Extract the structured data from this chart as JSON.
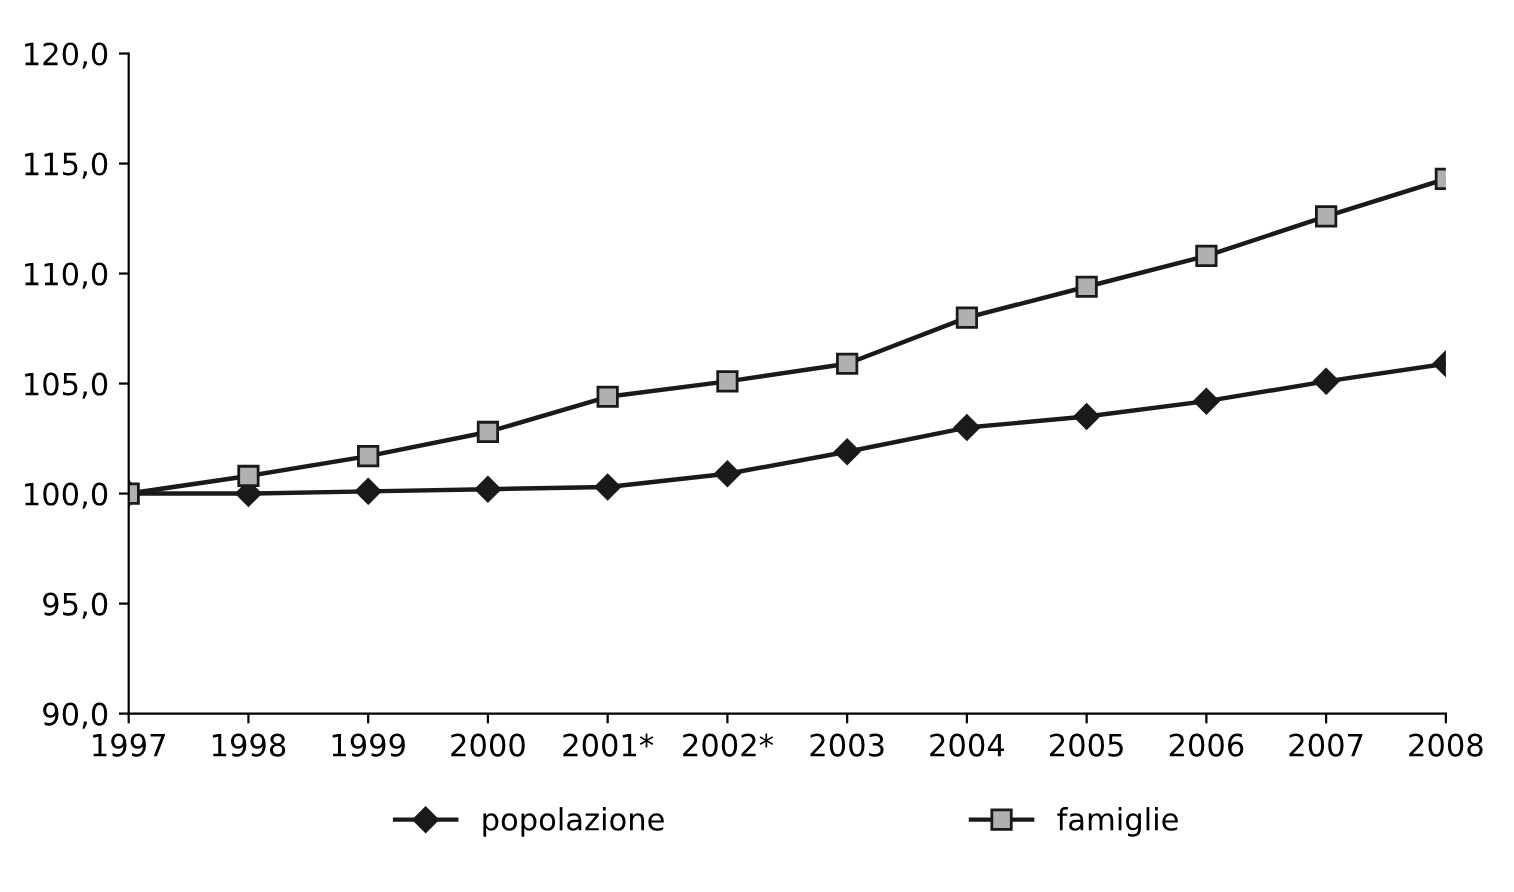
{
  "chart_data": {
    "type": "line",
    "categories": [
      "1997",
      "1998",
      "1999",
      "2000",
      "2001*",
      "2002*",
      "2003",
      "2004",
      "2005",
      "2006",
      "2007",
      "2008"
    ],
    "series": [
      {
        "name": "popolazione",
        "color": "#1a1a1a",
        "marker": "diamond",
        "values": [
          100.0,
          100.0,
          100.1,
          100.2,
          100.3,
          100.9,
          101.9,
          103.0,
          103.5,
          104.2,
          105.1,
          105.9
        ]
      },
      {
        "name": "famiglie",
        "color": "#1a1a1a",
        "marker": "square",
        "values": [
          100.0,
          100.8,
          101.7,
          102.8,
          104.4,
          105.1,
          105.9,
          108.0,
          109.4,
          110.8,
          112.6,
          114.3
        ]
      }
    ],
    "ylim": [
      90,
      120
    ],
    "yticks": [
      {
        "value": 90,
        "label": "90,0"
      },
      {
        "value": 95,
        "label": "95,0"
      },
      {
        "value": 100,
        "label": "100,0"
      },
      {
        "value": 105,
        "label": "105,0"
      },
      {
        "value": 110,
        "label": "110,0"
      },
      {
        "value": 115,
        "label": "115,0"
      },
      {
        "value": 120,
        "label": "120,0"
      }
    ],
    "grid": false,
    "legend": "bottom",
    "line_style": "solid"
  }
}
